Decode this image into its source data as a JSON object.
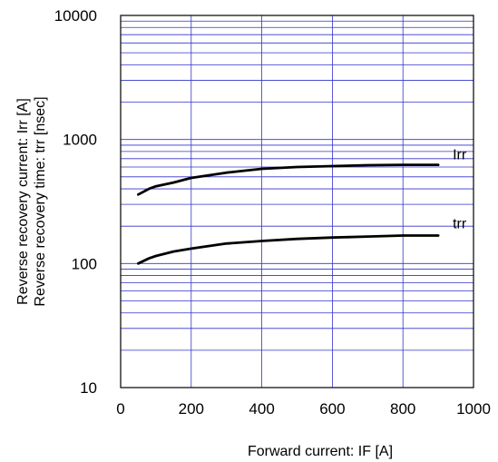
{
  "chart_data": {
    "type": "line",
    "title": "",
    "xlabel": "Forward current: IF [A]",
    "ylabel_lines": [
      "Reverse recovery current: Irr [A]",
      "Reverse recovery time: trr [nsec]"
    ],
    "xlim": [
      0,
      1000
    ],
    "ylim": [
      10,
      10000
    ],
    "yscale": "log",
    "x_ticks": [
      "0",
      "200",
      "400",
      "600",
      "800",
      "1000"
    ],
    "y_ticks": [
      "10",
      "100",
      "1000",
      "10000"
    ],
    "grid": true,
    "grid_color": "#3333cc",
    "line_color": "#000000",
    "legend": "none",
    "series": [
      {
        "name": "Irr",
        "x": [
          50,
          80,
          100,
          150,
          200,
          300,
          400,
          500,
          600,
          700,
          800,
          900
        ],
        "values": [
          360,
          400,
          420,
          450,
          490,
          540,
          580,
          600,
          610,
          620,
          625,
          625
        ]
      },
      {
        "name": "trr",
        "x": [
          50,
          80,
          100,
          150,
          200,
          300,
          400,
          500,
          600,
          700,
          800,
          900
        ],
        "values": [
          100,
          110,
          115,
          125,
          132,
          145,
          152,
          158,
          162,
          165,
          168,
          168
        ]
      }
    ]
  }
}
